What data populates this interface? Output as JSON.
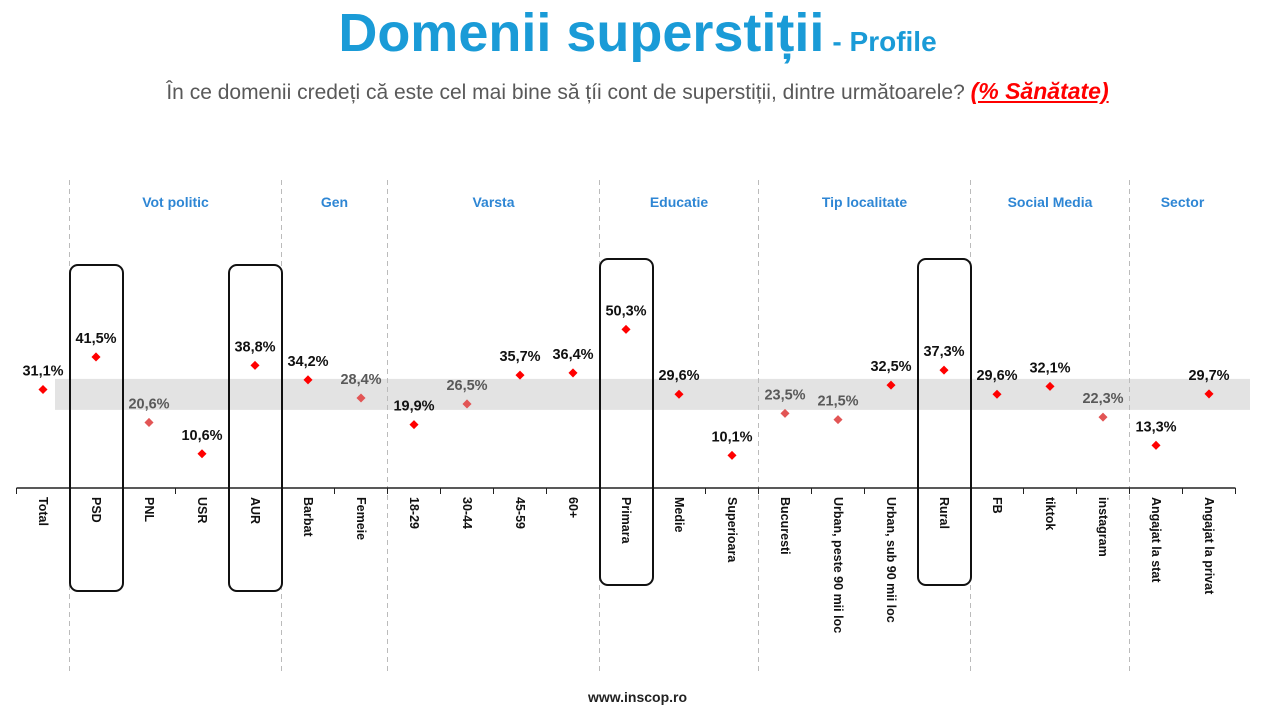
{
  "header": {
    "title": "Domenii superstiții",
    "subtitle": "- Profile",
    "question": "În ce domenii credeți că este cel mai bine să țíi cont de superstiții, dintre următoarele?",
    "highlight": "(% Sănătate)"
  },
  "footer": "www.inscop.ro",
  "colors": {
    "title": "#1a9bd7",
    "group": "#2e86d4",
    "point": "#ff0000",
    "band": "#e3e3e3",
    "highlight": "#ff0000"
  },
  "chart_data": {
    "type": "scatter",
    "title": "Domenii superstiții - Profile",
    "ylim": [
      0,
      60
    ],
    "reference_band": [
      24.6,
      34.5
    ],
    "categories": [
      "Total",
      "PSD",
      "PNL",
      "USR",
      "AUR",
      "Barbat",
      "Femeie",
      "18-29",
      "30-44",
      "45-59",
      "60+",
      "Primara",
      "Medie",
      "Superioara",
      "Bucuresti",
      "Urban, peste 90 mii loc",
      "Urban, sub 90 mii loc",
      "Rural",
      "FB",
      "tiktok",
      "instagram",
      "Angajat la stat",
      "Angajat la privat"
    ],
    "values": [
      31.1,
      41.5,
      20.6,
      10.6,
      38.8,
      34.2,
      28.4,
      19.9,
      26.5,
      35.7,
      36.4,
      50.3,
      29.6,
      10.1,
      23.5,
      21.5,
      32.5,
      37.3,
      29.6,
      32.1,
      22.3,
      13.3,
      29.7
    ],
    "labels": [
      "31,1%",
      "41,5%",
      "20,6%",
      "10,6%",
      "38,8%",
      "34,2%",
      "28,4%",
      "19,9%",
      "26,5%",
      "35,7%",
      "36,4%",
      "50,3%",
      "29,6%",
      "10,1%",
      "23,5%",
      "21,5%",
      "32,5%",
      "37,3%",
      "29,6%",
      "32,1%",
      "22,3%",
      "13,3%",
      "29,7%"
    ],
    "label_muted": [
      false,
      false,
      true,
      false,
      false,
      false,
      true,
      false,
      true,
      false,
      false,
      false,
      false,
      false,
      true,
      true,
      false,
      false,
      false,
      false,
      true,
      false,
      false
    ],
    "groups": [
      {
        "name": "Vot politic",
        "start": 1,
        "end": 4
      },
      {
        "name": "Gen",
        "start": 5,
        "end": 6
      },
      {
        "name": "Varsta",
        "start": 7,
        "end": 10
      },
      {
        "name": "Educatie",
        "start": 11,
        "end": 13
      },
      {
        "name": "Tip localitate",
        "start": 14,
        "end": 17
      },
      {
        "name": "Social Media",
        "start": 18,
        "end": 20
      },
      {
        "name": "Sector",
        "start": 21,
        "end": 22
      }
    ],
    "highlighted": [
      "PSD",
      "AUR",
      "Primara",
      "Rural"
    ]
  }
}
